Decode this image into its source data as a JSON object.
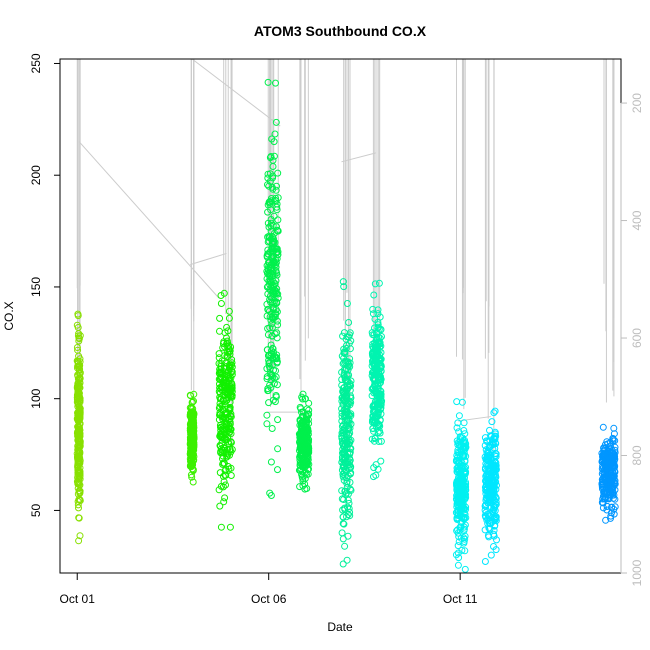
{
  "chart_data": {
    "type": "scatter",
    "title": "ATOM3 Southbound CO.X",
    "xlabel": "Date",
    "ylabel": "CO.X",
    "x_ticks": [
      "Oct 01",
      "Oct 06",
      "Oct 11"
    ],
    "x_tick_days": [
      1,
      6,
      11
    ],
    "xlim_days": [
      0.55,
      15.2
    ],
    "ylim": [
      22,
      252
    ],
    "y_ticks": [
      50,
      100,
      150,
      200,
      250
    ],
    "right_axis": {
      "quantity": "altitude trace (inverted)",
      "ticks": [
        200,
        400,
        600,
        800,
        1000
      ],
      "range": [
        125,
        1000
      ]
    },
    "grid": false,
    "legend": "none",
    "colors": {
      "series_1": "#88e000",
      "series_2": "#3cf000",
      "series_3": "#12f000",
      "series_4": "#00f04c",
      "series_5": "#00f09a",
      "series_6": "#00f4b0",
      "series_7": "#00f0f0",
      "series_8": "#00e6ff",
      "series_9": "#0096ff",
      "trace": "#cccccc"
    },
    "series": [
      {
        "x_days": [
          1.0,
          1.08
        ],
        "y_range": [
          36,
          140
        ],
        "color": "series_1"
      },
      {
        "x_days": [
          3.95,
          4.05
        ],
        "y_range": [
          62,
          103
        ],
        "color": "series_2"
      },
      {
        "x_days": [
          4.7,
          5.05
        ],
        "y_range": [
          42,
          149
        ],
        "color": "series_3"
      },
      {
        "x_days": [
          5.95,
          6.25
        ],
        "y_range": [
          56,
          243
        ],
        "color": "series_4"
      },
      {
        "x_days": [
          6.8,
          7.05
        ],
        "y_range": [
          57,
          103
        ],
        "color": "series_4"
      },
      {
        "x_days": [
          7.9,
          8.15
        ],
        "y_range": [
          25,
          153
        ],
        "color": "series_5"
      },
      {
        "x_days": [
          8.7,
          8.95
        ],
        "y_range": [
          64,
          152
        ],
        "color": "series_6"
      },
      {
        "x_days": [
          10.9,
          11.15
        ],
        "y_range": [
          23,
          99
        ],
        "color": "series_7"
      },
      {
        "x_days": [
          11.65,
          11.95
        ],
        "y_range": [
          27,
          96
        ],
        "color": "series_8"
      },
      {
        "x_days": [
          14.7,
          15.05
        ],
        "y_range": [
          45,
          89
        ],
        "color": "series_9"
      }
    ]
  }
}
